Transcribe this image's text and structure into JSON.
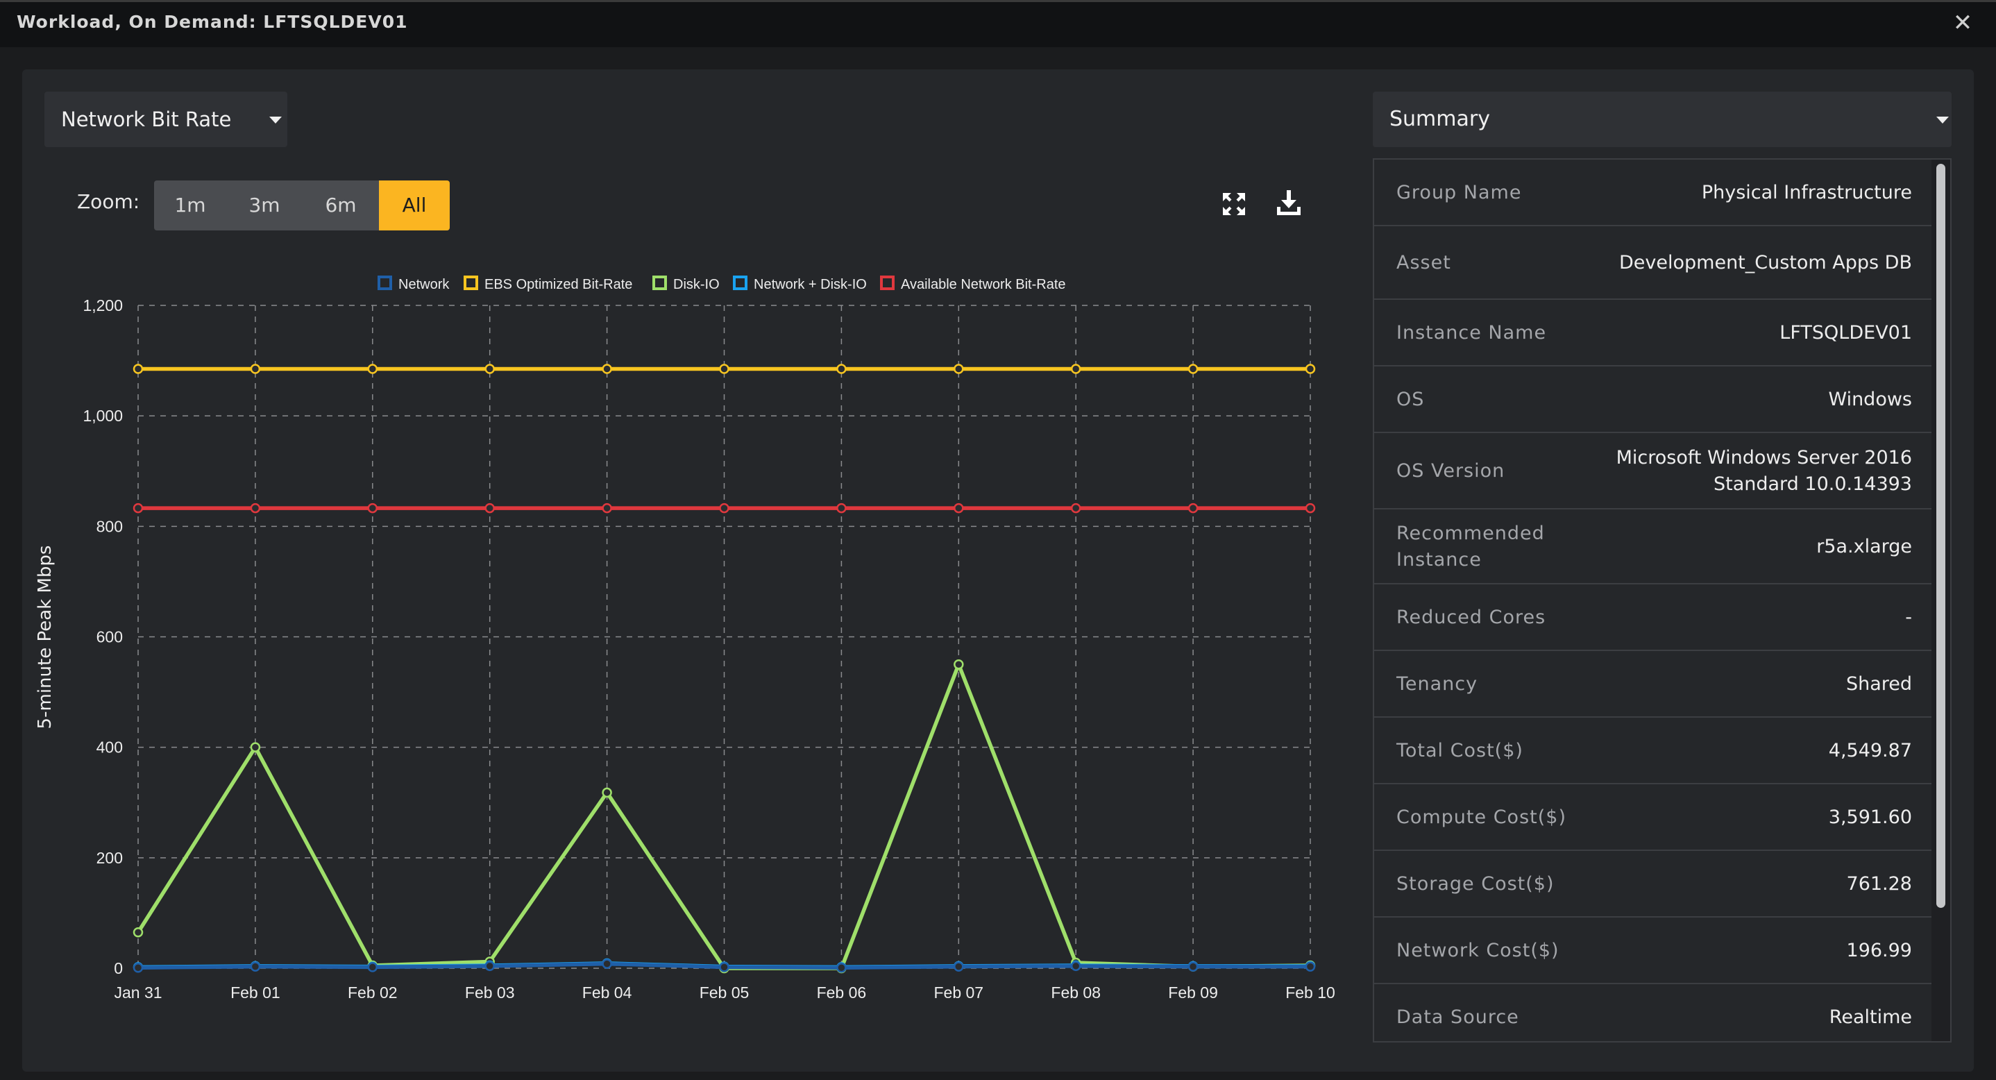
{
  "window": {
    "title": "Workload, On Demand: LFTSQLDEV01",
    "close_glyph": "✕"
  },
  "metric_select": {
    "value": "Network Bit Rate"
  },
  "zoom": {
    "label": "Zoom:",
    "options": [
      "1m",
      "3m",
      "6m",
      "All"
    ],
    "selected": "All"
  },
  "toolbar": {
    "icons": [
      "fullscreen-icon",
      "download-icon"
    ]
  },
  "chart_data": {
    "type": "line",
    "ylabel": "5-minute Peak Mbps",
    "xlabel": "",
    "categories": [
      "Jan 31",
      "Feb 01",
      "Feb 02",
      "Feb 03",
      "Feb 04",
      "Feb 05",
      "Feb 06",
      "Feb 07",
      "Feb 08",
      "Feb 09",
      "Feb 10"
    ],
    "ylim": [
      0,
      1200
    ],
    "yticks": [
      0,
      200,
      400,
      600,
      800,
      1000,
      1200
    ],
    "ytick_labels": [
      "0",
      "200",
      "400",
      "600",
      "800",
      "1,000",
      "1,200"
    ],
    "grid": true,
    "legend_position": "top",
    "series": [
      {
        "name": "Network",
        "color": "#1f5fa8",
        "values": [
          1,
          3,
          2,
          4,
          8,
          2,
          1,
          3,
          4,
          3,
          3
        ]
      },
      {
        "name": "EBS Optimized Bit-Rate",
        "color": "#f7c520",
        "values": [
          1085,
          1085,
          1085,
          1085,
          1085,
          1085,
          1085,
          1085,
          1085,
          1085,
          1085
        ]
      },
      {
        "name": "Disk-IO",
        "color": "#9fdf6a",
        "values": [
          65,
          400,
          5,
          12,
          318,
          0,
          0,
          550,
          10,
          3,
          5
        ]
      },
      {
        "name": "Network + Disk-IO",
        "color": "#1aa3f0",
        "values": [
          2,
          4,
          3,
          5,
          9,
          3,
          2,
          4,
          5,
          4,
          4
        ]
      },
      {
        "name": "Available Network Bit-Rate",
        "color": "#e0383e",
        "values": [
          833,
          833,
          833,
          833,
          833,
          833,
          833,
          833,
          833,
          833,
          833
        ]
      }
    ]
  },
  "summary": {
    "title": "Summary",
    "rows": [
      {
        "label": "Group Name",
        "value": "Physical Infrastructure"
      },
      {
        "label": "Asset",
        "value": "Development_Custom Apps DB"
      },
      {
        "label": "Instance Name",
        "value": "LFTSQLDEV01"
      },
      {
        "label": "OS",
        "value": "Windows"
      },
      {
        "label": "OS Version",
        "value": "Microsoft Windows Server 2016 Standard 10.0.14393"
      },
      {
        "label": "Recommended Instance",
        "value": "r5a.xlarge"
      },
      {
        "label": "Reduced Cores",
        "value": "-"
      },
      {
        "label": "Tenancy",
        "value": "Shared"
      },
      {
        "label": "Total Cost($)",
        "value": "4,549.87"
      },
      {
        "label": "Compute Cost($)",
        "value": "3,591.60"
      },
      {
        "label": "Storage Cost($)",
        "value": "761.28"
      },
      {
        "label": "Network Cost($)",
        "value": "196.99"
      },
      {
        "label": "Data Source",
        "value": "Realtime"
      }
    ]
  }
}
